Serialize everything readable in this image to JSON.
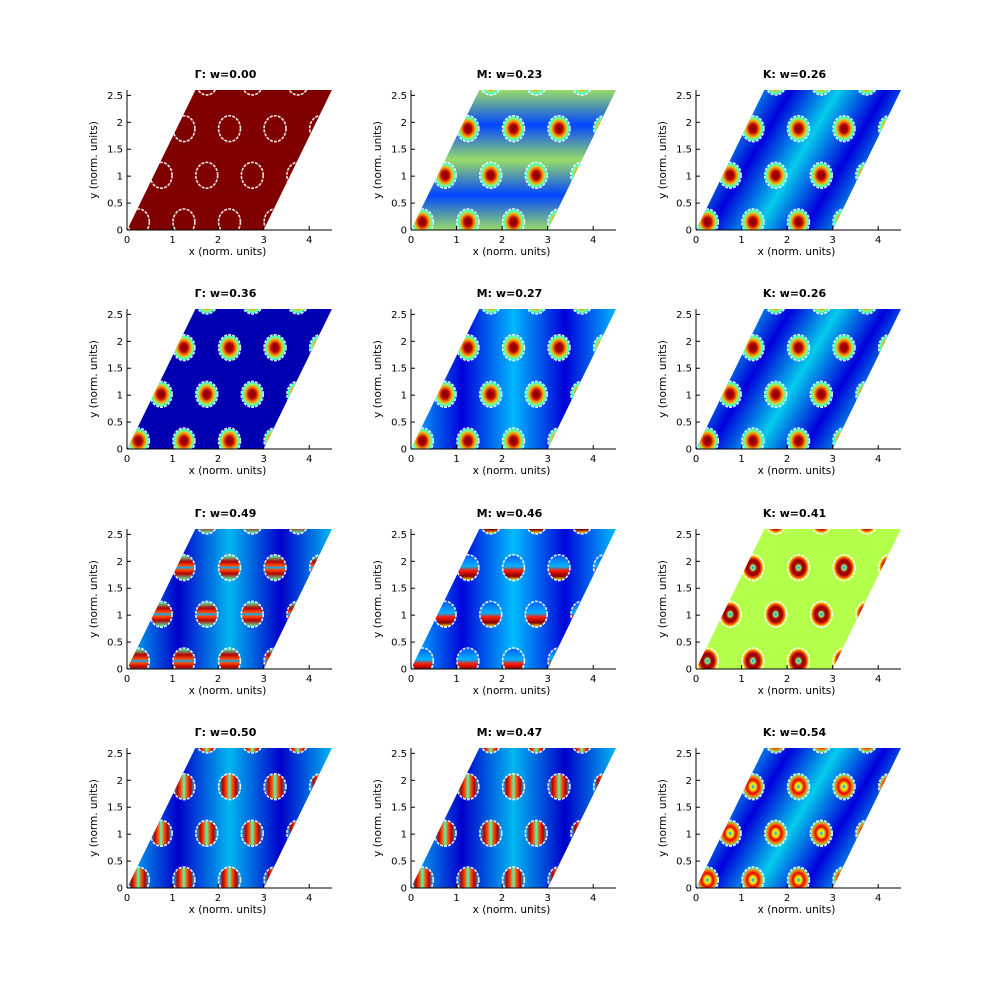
{
  "chart_data": {
    "type": "heatmap",
    "layout": {
      "rows": 4,
      "cols": 3
    },
    "shared_axes": {
      "xlabel": "x (norm. units)",
      "ylabel": "y (norm. units)",
      "xlim": [
        0,
        4.5
      ],
      "ylim": [
        0,
        2.6
      ],
      "xticks": [
        "0",
        "1",
        "2",
        "3",
        "4"
      ],
      "yticks": [
        "0",
        "0.5",
        "1",
        "1.5",
        "2",
        "2.5"
      ],
      "colormap": "jet"
    },
    "panels": [
      {
        "title": "Γ: w=0.00",
        "point": "Γ",
        "w": 0.0,
        "mode": "flat",
        "background": 1.0
      },
      {
        "title": "M: w=0.23",
        "point": "M",
        "w": 0.23,
        "mode": "blobs",
        "bands": "horizontal",
        "background": 0.15
      },
      {
        "title": "K: w=0.26",
        "point": "K",
        "w": 0.26,
        "mode": "blobs",
        "bands": "diagonal",
        "background": 0.05
      },
      {
        "title": "Γ: w=0.36",
        "point": "Γ",
        "w": 0.36,
        "mode": "blobs",
        "bands": "none",
        "background": 0.05
      },
      {
        "title": "M: w=0.27",
        "point": "M",
        "w": 0.27,
        "mode": "blobs",
        "bands": "vertical",
        "background": 0.12
      },
      {
        "title": "K: w=0.26",
        "point": "K",
        "w": 0.26,
        "mode": "blobs",
        "bands": "diagonal",
        "background": 0.05
      },
      {
        "title": "Γ: w=0.49",
        "point": "Γ",
        "w": 0.49,
        "mode": "split-horizontal",
        "bands": "vertical",
        "background": 0.05
      },
      {
        "title": "M: w=0.46",
        "point": "M",
        "w": 0.46,
        "mode": "half-moon",
        "bands": "vertical",
        "background": 0.15
      },
      {
        "title": "K: w=0.41",
        "point": "K",
        "w": 0.41,
        "mode": "ring",
        "bands": "none",
        "background": 0.55
      },
      {
        "title": "Γ: w=0.50",
        "point": "Γ",
        "w": 0.5,
        "mode": "split-vertical",
        "bands": "vertical",
        "background": 0.05
      },
      {
        "title": "M: w=0.47",
        "point": "M",
        "w": 0.47,
        "mode": "split-vertical",
        "bands": "vertical",
        "background": 0.05
      },
      {
        "title": "K: w=0.54",
        "point": "K",
        "w": 0.54,
        "mode": "vortex",
        "bands": "diagonal",
        "background": 0.05
      }
    ]
  }
}
